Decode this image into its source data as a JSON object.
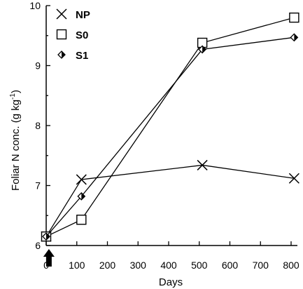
{
  "chart_data": {
    "type": "line",
    "xlabel": "Days",
    "ylabel_main": "Foliar N conc. (g kg",
    "ylabel_sup": "-1",
    "ylabel_close": ")",
    "xlim": [
      0,
      800
    ],
    "ylim": [
      6,
      10
    ],
    "xticks": [
      0,
      100,
      200,
      300,
      400,
      500,
      600,
      700,
      800
    ],
    "yticks": [
      6,
      7,
      8,
      9,
      10
    ],
    "grid": false,
    "legend_position": "top-left",
    "annotation": {
      "type": "arrow",
      "x": 50,
      "direction": "up"
    },
    "series": [
      {
        "name": "NP",
        "marker": "x",
        "x": [
          0,
          115,
          510,
          810
        ],
        "values": [
          6.15,
          7.1,
          7.34,
          7.12
        ]
      },
      {
        "name": "S0",
        "marker": "square-open",
        "x": [
          0,
          115,
          510,
          810
        ],
        "values": [
          6.15,
          6.43,
          9.38,
          9.8
        ]
      },
      {
        "name": "S1",
        "marker": "diamond-filled",
        "x": [
          0,
          115,
          510,
          810
        ],
        "values": [
          6.15,
          6.82,
          9.27,
          9.47
        ]
      }
    ]
  }
}
